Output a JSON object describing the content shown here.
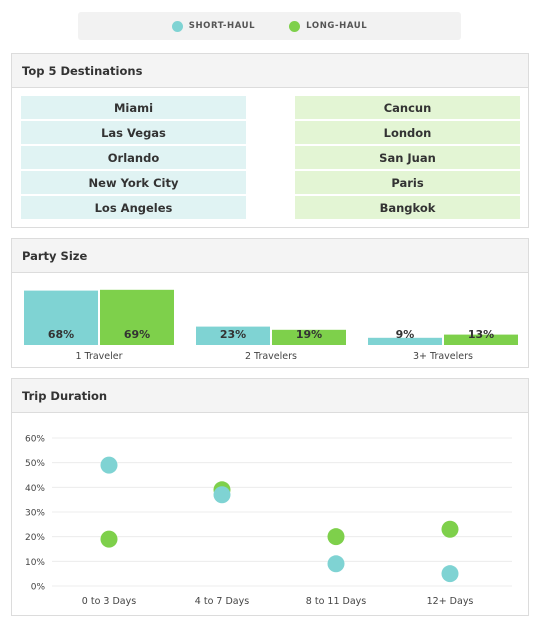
{
  "legend": {
    "short_label": "SHORT-HAUL",
    "long_label": "LONG-HAUL"
  },
  "colors": {
    "short": "#7fd3d3",
    "long": "#7ed04b"
  },
  "destinations": {
    "title": "Top 5 Destinations",
    "short_haul": [
      "Miami",
      "Las Vegas",
      "Orlando",
      "New York City",
      "Los Angeles"
    ],
    "long_haul": [
      "Cancun",
      "London",
      "San Juan",
      "Paris",
      "Bangkok"
    ]
  },
  "party": {
    "title": "Party Size"
  },
  "trip": {
    "title": "Trip Duration"
  },
  "chart_data": [
    {
      "type": "bar",
      "title": "Party Size",
      "categories": [
        "1 Traveler",
        "2 Travelers",
        "3+ Travelers"
      ],
      "series": [
        {
          "name": "SHORT-HAUL",
          "values": [
            68,
            23,
            9
          ]
        },
        {
          "name": "LONG-HAUL",
          "values": [
            69,
            19,
            13
          ]
        }
      ],
      "data_labels": [
        [
          "68%",
          "23%",
          "9%"
        ],
        [
          "69%",
          "19%",
          "13%"
        ]
      ],
      "ylim": [
        0,
        70
      ]
    },
    {
      "type": "scatter",
      "title": "Trip Duration",
      "categories": [
        "0 to 3 Days",
        "4 to 7 Days",
        "8 to 11 Days",
        "12+ Days"
      ],
      "series": [
        {
          "name": "SHORT-HAUL",
          "values": [
            49,
            37,
            9,
            5
          ]
        },
        {
          "name": "LONG-HAUL",
          "values": [
            19,
            39,
            20,
            23
          ]
        }
      ],
      "ylim": [
        0,
        60
      ],
      "yticks": [
        "0%",
        "10%",
        "20%",
        "30%",
        "40%",
        "50%",
        "60%"
      ],
      "grid": true
    }
  ]
}
